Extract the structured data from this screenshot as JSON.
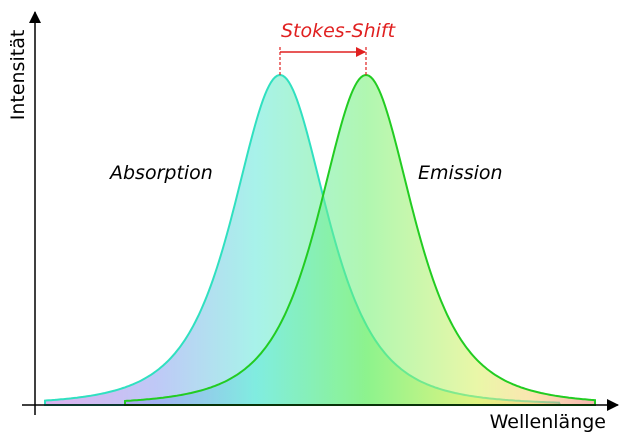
{
  "diagram": {
    "y_axis_label": "Intensität",
    "x_axis_label": "Wellenlänge",
    "shift_label": "Stokes-Shift",
    "absorption_label": "Absorption",
    "emission_label": "Emission"
  }
}
